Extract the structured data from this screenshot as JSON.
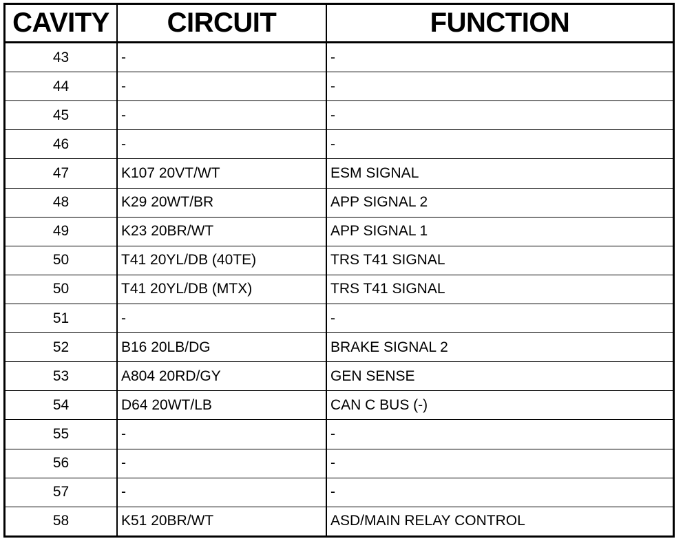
{
  "headers": {
    "cavity": "CAVITY",
    "circuit": "CIRCUIT",
    "function": "FUNCTION"
  },
  "rows": [
    {
      "cavity": "43",
      "circuit": "-",
      "function": "-"
    },
    {
      "cavity": "44",
      "circuit": "-",
      "function": "-"
    },
    {
      "cavity": "45",
      "circuit": "-",
      "function": "-"
    },
    {
      "cavity": "46",
      "circuit": "-",
      "function": "-"
    },
    {
      "cavity": "47",
      "circuit": "K107 20VT/WT",
      "function": "ESM SIGNAL"
    },
    {
      "cavity": "48",
      "circuit": "K29 20WT/BR",
      "function": "APP SIGNAL 2"
    },
    {
      "cavity": "49",
      "circuit": "K23 20BR/WT",
      "function": "APP SIGNAL 1"
    },
    {
      "cavity": "50",
      "circuit": "T41 20YL/DB (40TE)",
      "function": "TRS T41 SIGNAL"
    },
    {
      "cavity": "50",
      "circuit": "T41 20YL/DB (MTX)",
      "function": "TRS T41 SIGNAL"
    },
    {
      "cavity": "51",
      "circuit": "-",
      "function": "-"
    },
    {
      "cavity": "52",
      "circuit": "B16 20LB/DG",
      "function": "BRAKE SIGNAL 2"
    },
    {
      "cavity": "53",
      "circuit": "A804 20RD/GY",
      "function": "GEN SENSE"
    },
    {
      "cavity": "54",
      "circuit": "D64 20WT/LB",
      "function": "CAN C BUS (-)"
    },
    {
      "cavity": "55",
      "circuit": "-",
      "function": "-"
    },
    {
      "cavity": "56",
      "circuit": "-",
      "function": "-"
    },
    {
      "cavity": "57",
      "circuit": "-",
      "function": "-"
    },
    {
      "cavity": "58",
      "circuit": "K51 20BR/WT",
      "function": "ASD/MAIN RELAY CONTROL"
    }
  ]
}
